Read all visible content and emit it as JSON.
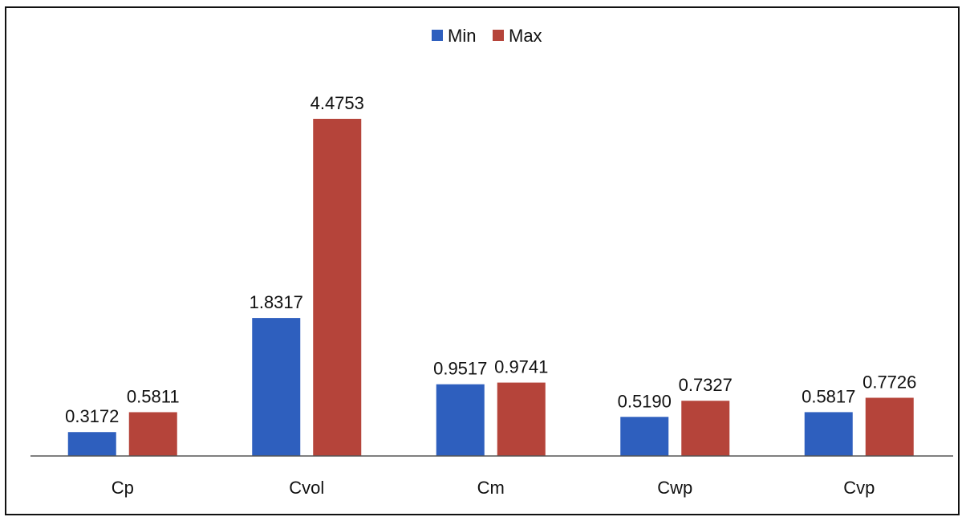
{
  "chart_data": {
    "type": "bar",
    "categories": [
      "Cp",
      "Cvol",
      "Cm",
      "Cwp",
      "Cvp"
    ],
    "series": [
      {
        "name": "Min",
        "values": [
          0.3172,
          1.8317,
          0.9517,
          0.519,
          0.5817
        ],
        "labels": [
          "0.3172",
          "1.8317",
          "0.9517",
          "0.5190",
          "0.5817"
        ],
        "color": "#2e5fbe"
      },
      {
        "name": "Max",
        "values": [
          0.5811,
          4.4753,
          0.9741,
          0.7327,
          0.7726
        ],
        "labels": [
          "0.5811",
          "4.4753",
          "0.9741",
          "0.7327",
          "0.7726"
        ],
        "color": "#b5443a"
      }
    ],
    "legend_position": "top-center",
    "grid": false,
    "ylim": [
      0,
      4.4753
    ]
  }
}
